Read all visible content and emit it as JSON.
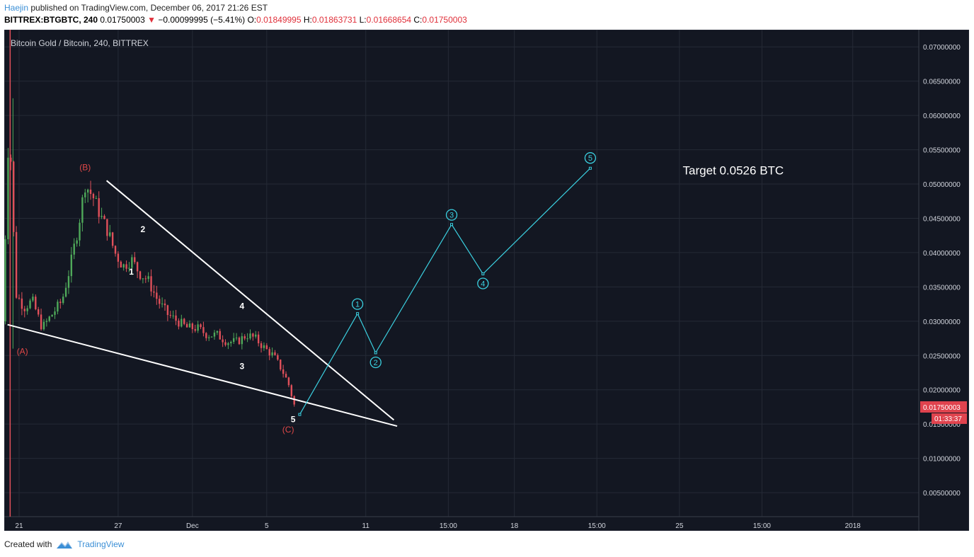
{
  "header": {
    "author": "Haejin",
    "published_text": "published on TradingView.com, December 06, 2017 21:26 EST",
    "symbol": "BITTREX:BTGBTC, 240",
    "last": "0.01750003",
    "change_arrow": "▼",
    "change": "−0.00099995 (−5.41%)",
    "o_label": "O:",
    "o_value": "0.01849995",
    "h_label": "H:",
    "h_value": "0.01863731",
    "l_label": "L:",
    "l_value": "0.01668654",
    "c_label": "C:",
    "c_value": "0.01750003"
  },
  "footer": {
    "created_with": "Created with",
    "brand": "TradingView"
  },
  "colors": {
    "background": "#131722",
    "up_candle": "#4fa95a",
    "down_candle": "#e0505a",
    "projection": "#3bd0e0",
    "trendline": "#ffffff",
    "wave_label_red": "#e04848",
    "price_tag": "#e0434e"
  },
  "chart_data": {
    "type": "candlestick",
    "title": "Bitcoin Gold / Bitcoin, 240, BITTREX",
    "y_ticks": [
      "0.07000000",
      "0.06500000",
      "0.06000000",
      "0.05500000",
      "0.05000000",
      "0.04500000",
      "0.04000000",
      "0.03500000",
      "0.03000000",
      "0.02500000",
      "0.02000000",
      "0.01500000",
      "0.01000000",
      "0.00500000"
    ],
    "y_tick_values": [
      0.07,
      0.065,
      0.06,
      0.055,
      0.05,
      0.045,
      0.04,
      0.035,
      0.03,
      0.025,
      0.02,
      0.015,
      0.01,
      0.005
    ],
    "ylim": [
      0.0015,
      0.0725
    ],
    "x_ticks": [
      "21",
      "27",
      "Dec",
      "5",
      "11",
      "15:00",
      "18",
      "15:00",
      "25",
      "15:00",
      "2018"
    ],
    "x_tick_days": [
      21,
      27,
      31.5,
      36,
      42,
      47,
      51,
      56,
      61,
      66,
      71.5
    ],
    "xlim": [
      20.1,
      75.5
    ],
    "last_price_tag": "0.01750003",
    "countdown_tag": "01:33:37",
    "last_price": 0.01750003,
    "price_path": [
      [
        20.0,
        0.03
      ],
      [
        20.4,
        0.06
      ],
      [
        20.8,
        0.034
      ],
      [
        21.3,
        0.032
      ],
      [
        21.8,
        0.033
      ],
      [
        22.4,
        0.029
      ],
      [
        23.0,
        0.031
      ],
      [
        23.6,
        0.033
      ],
      [
        24.1,
        0.038
      ],
      [
        24.6,
        0.044
      ],
      [
        25.0,
        0.05
      ],
      [
        25.5,
        0.048
      ],
      [
        26.0,
        0.045
      ],
      [
        26.4,
        0.043
      ],
      [
        26.8,
        0.04
      ],
      [
        27.3,
        0.038
      ],
      [
        27.8,
        0.039
      ],
      [
        28.3,
        0.037
      ],
      [
        28.8,
        0.036
      ],
      [
        29.4,
        0.033
      ],
      [
        30.0,
        0.031
      ],
      [
        30.6,
        0.03
      ],
      [
        31.2,
        0.029
      ],
      [
        31.8,
        0.029
      ],
      [
        32.4,
        0.028
      ],
      [
        33.0,
        0.028
      ],
      [
        33.6,
        0.027
      ],
      [
        34.2,
        0.027
      ],
      [
        34.8,
        0.028
      ],
      [
        35.3,
        0.0275
      ],
      [
        35.9,
        0.026
      ],
      [
        36.4,
        0.025
      ],
      [
        36.9,
        0.023
      ],
      [
        37.3,
        0.021
      ],
      [
        37.7,
        0.0175
      ]
    ],
    "wick_spike": {
      "day": 20.5,
      "high": 0.0625,
      "low": 0.026
    },
    "trendlines": [
      {
        "name": "upper",
        "from": [
          26.3,
          0.0505
        ],
        "to": [
          43.7,
          0.0156
        ]
      },
      {
        "name": "lower",
        "from": [
          20.3,
          0.0295
        ],
        "to": [
          43.9,
          0.0147
        ]
      }
    ],
    "projection": {
      "x": [
        38.0,
        41.5,
        42.6,
        47.2,
        49.1,
        55.6
      ],
      "y": [
        0.0164,
        0.0311,
        0.0254,
        0.0441,
        0.0369,
        0.0523
      ],
      "labels": [
        "",
        "1",
        "2",
        "3",
        "4",
        "5"
      ]
    },
    "annotations": {
      "circled": [
        {
          "text": "1",
          "x": 41.5,
          "y": 0.0325
        },
        {
          "text": "2",
          "x": 42.6,
          "y": 0.024
        },
        {
          "text": "3",
          "x": 47.2,
          "y": 0.0455
        },
        {
          "text": "4",
          "x": 49.1,
          "y": 0.0355
        },
        {
          "text": "5",
          "x": 55.6,
          "y": 0.0538
        }
      ],
      "waves_red": [
        {
          "text": "(B)",
          "x": 25.0,
          "y": 0.052
        },
        {
          "text": "(A)",
          "x": 21.2,
          "y": 0.0252
        },
        {
          "text": "(C)",
          "x": 37.3,
          "y": 0.0138
        }
      ],
      "waves_white": [
        {
          "text": "2",
          "x": 28.5,
          "y": 0.043
        },
        {
          "text": "1",
          "x": 27.8,
          "y": 0.0368
        },
        {
          "text": "4",
          "x": 34.5,
          "y": 0.0318
        },
        {
          "text": "3",
          "x": 34.5,
          "y": 0.023
        },
        {
          "text": "5",
          "x": 37.6,
          "y": 0.0153
        }
      ],
      "target_text": "Target 0.0526 BTC",
      "target_pos": {
        "x": 61.2,
        "y": 0.0514
      }
    }
  }
}
